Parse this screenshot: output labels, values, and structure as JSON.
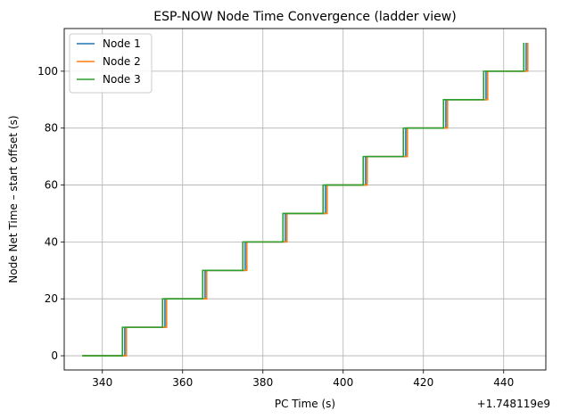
{
  "chart_data": {
    "type": "line",
    "title": "ESP-NOW Node Time Convergence (ladder view)",
    "xlabel": "PC Time (s)",
    "ylabel": "Node Net Time – start offset (s)",
    "x_offset_label": "+1.748119e9",
    "xlim": [
      330.5,
      450.5
    ],
    "ylim": [
      -5,
      115
    ],
    "x_ticks": [
      340,
      360,
      380,
      400,
      420,
      440
    ],
    "y_ticks": [
      0,
      20,
      40,
      60,
      80,
      100
    ],
    "grid": true,
    "legend_position": "top-left",
    "series": [
      {
        "name": "Node 1",
        "color": "#1f77b4",
        "step_x": [
          335,
          345.6,
          355.6,
          365.6,
          375.6,
          385.6,
          395.6,
          405.6,
          415.6,
          425.6,
          435.6,
          445.6
        ],
        "step_y": [
          0,
          10,
          20,
          30,
          40,
          50,
          60,
          70,
          80,
          90,
          100,
          110
        ]
      },
      {
        "name": "Node 2",
        "color": "#ff7f0e",
        "step_x": [
          335,
          346.0,
          356.0,
          366.0,
          376.0,
          386.0,
          396.0,
          406.0,
          416.0,
          426.0,
          436.0,
          446.0
        ],
        "step_y": [
          0,
          10,
          20,
          30,
          40,
          50,
          60,
          70,
          80,
          90,
          100,
          110
        ]
      },
      {
        "name": "Node 3",
        "color": "#2ca02c",
        "step_x": [
          335,
          345.0,
          355.0,
          365.0,
          375.0,
          385.0,
          395.0,
          405.0,
          415.0,
          425.0,
          435.0,
          445.0
        ],
        "step_y": [
          0,
          10,
          20,
          30,
          40,
          50,
          60,
          70,
          80,
          90,
          100,
          110
        ]
      }
    ]
  }
}
